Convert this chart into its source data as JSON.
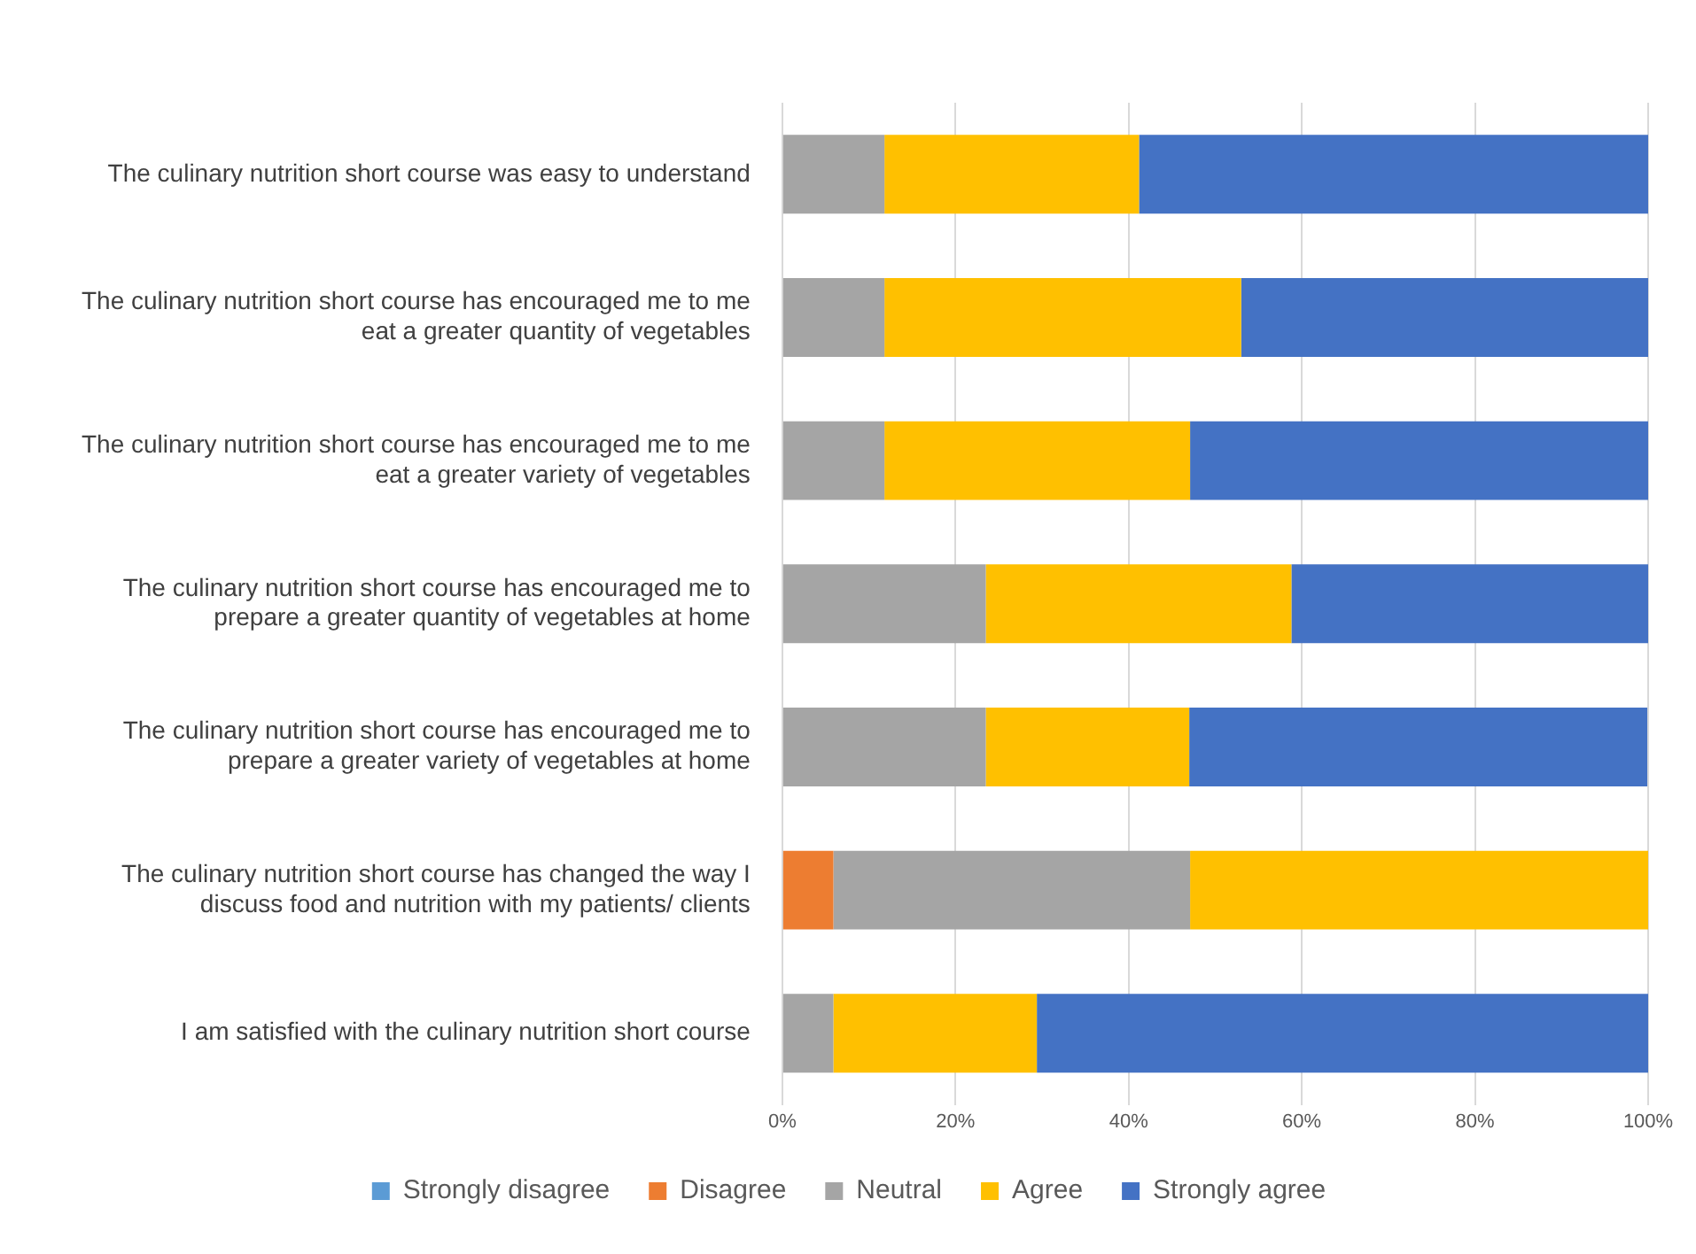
{
  "chart_data": {
    "type": "bar",
    "orientation": "horizontal",
    "stacked": true,
    "categories": [
      "The culinary nutrition short course was easy to understand",
      "The culinary nutrition short course has encouraged me to me eat a greater quantity of vegetables",
      "The culinary nutrition short course has encouraged me to me eat a greater variety of vegetables",
      "The culinary nutrition short course has encouraged me to prepare a greater quantity of vegetables at home",
      "The culinary nutrition short course has encouraged me to prepare a greater variety of vegetables at home",
      "The culinary nutrition short course has changed the way I discuss food and nutrition with my patients/ clients",
      "I am satisfied with the culinary nutrition short course"
    ],
    "series": [
      {
        "name": "Strongly disagree",
        "color": "#5b9bd5",
        "values": [
          0,
          0,
          0,
          0,
          0,
          0,
          0
        ]
      },
      {
        "name": "Disagree",
        "color": "#ed7d31",
        "values": [
          0,
          0,
          0,
          0,
          0,
          5.9,
          0
        ]
      },
      {
        "name": "Neutral",
        "color": "#a5a5a5",
        "values": [
          11.8,
          11.8,
          11.8,
          23.5,
          23.5,
          41.2,
          5.9
        ]
      },
      {
        "name": "Agree",
        "color": "#ffc000",
        "values": [
          29.4,
          41.2,
          35.3,
          35.3,
          23.5,
          52.9,
          23.5
        ]
      },
      {
        "name": "Strongly agree",
        "color": "#4472c4",
        "values": [
          58.8,
          47.1,
          52.9,
          41.2,
          52.9,
          0,
          70.6
        ]
      }
    ],
    "xlim": [
      0,
      100
    ],
    "xticks": [
      {
        "value": 0,
        "label": "0%"
      },
      {
        "value": 20,
        "label": "20%"
      },
      {
        "value": 40,
        "label": "40%"
      },
      {
        "value": 60,
        "label": "60%"
      },
      {
        "value": 80,
        "label": "80%"
      },
      {
        "value": 100,
        "label": "100%"
      }
    ],
    "grid": "x",
    "legend": "bottom"
  }
}
